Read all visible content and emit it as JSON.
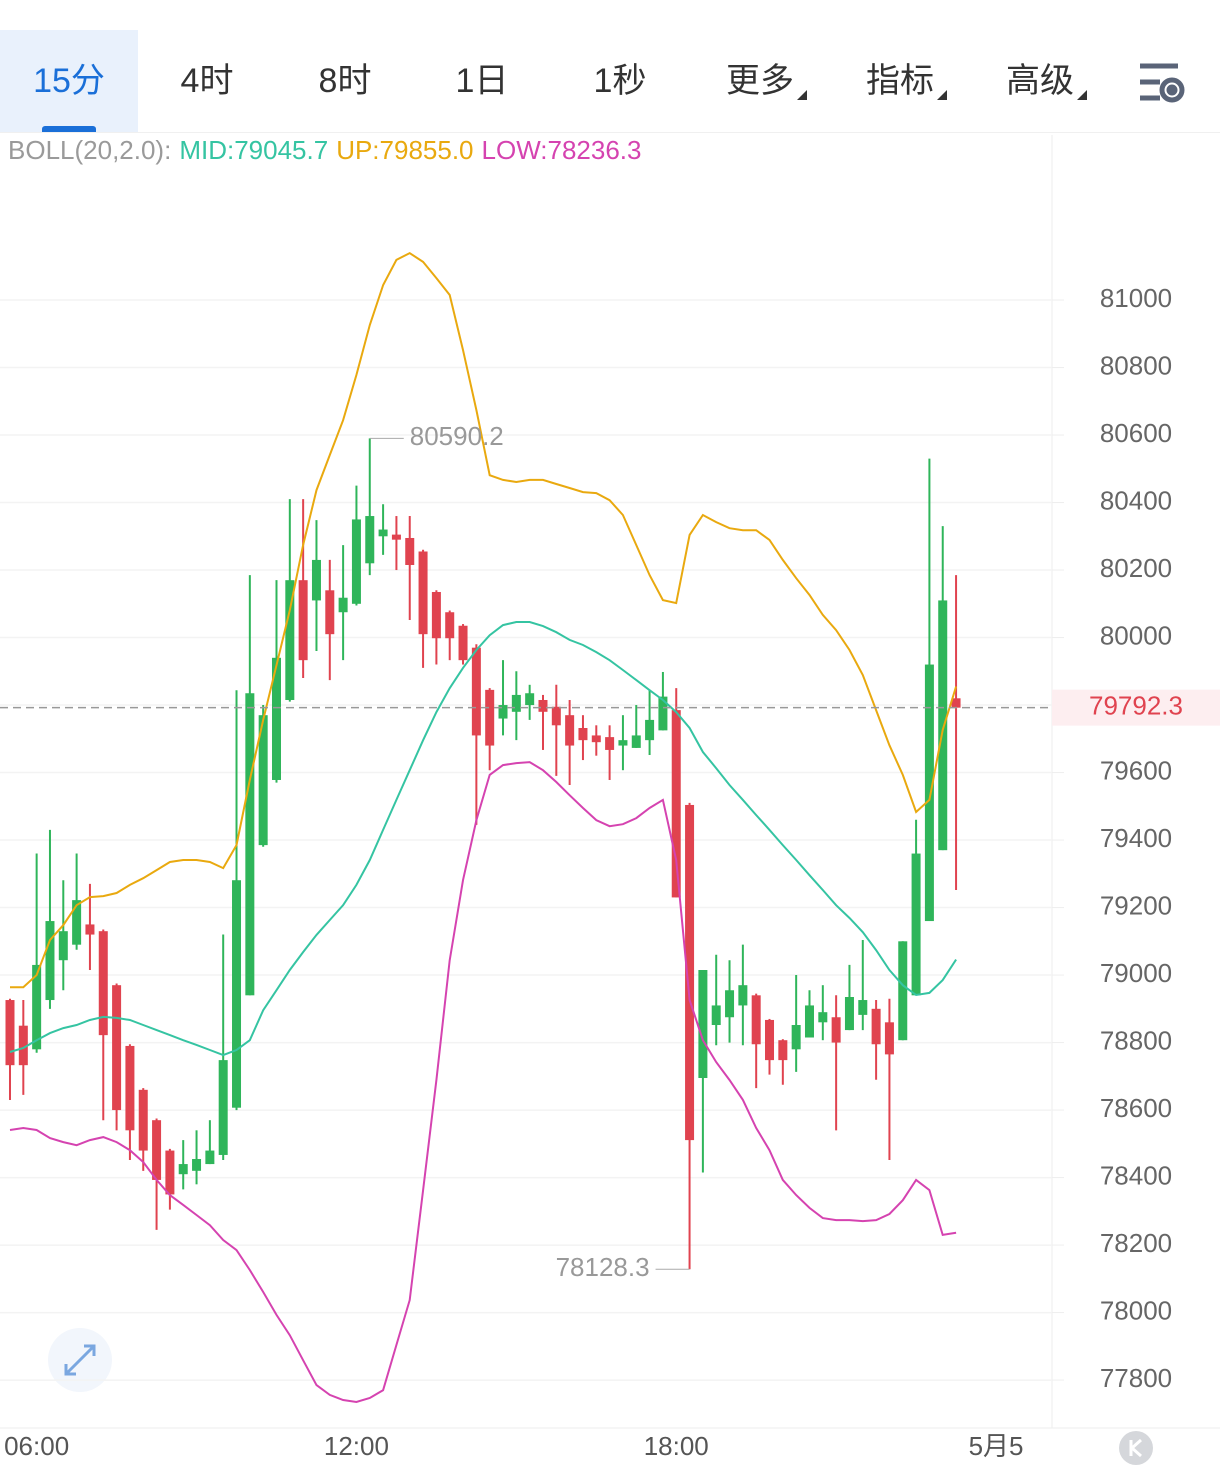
{
  "tabs": [
    {
      "label": "15分",
      "active": true,
      "dropdown": false
    },
    {
      "label": "4时",
      "active": false,
      "dropdown": false
    },
    {
      "label": "8时",
      "active": false,
      "dropdown": false
    },
    {
      "label": "1日",
      "active": false,
      "dropdown": false
    },
    {
      "label": "1秒",
      "active": false,
      "dropdown": false
    },
    {
      "label": "更多",
      "active": false,
      "dropdown": true
    },
    {
      "label": "指标",
      "active": false,
      "dropdown": true
    },
    {
      "label": "高级",
      "active": false,
      "dropdown": true
    }
  ],
  "chart_data": {
    "type": "candlestick",
    "indicator": "BOLL(20,2.0):",
    "up_color": "#2fb55a",
    "down_color": "#e0434f",
    "open": [
      78926,
      78850,
      78780,
      78926,
      79044,
      79090,
      79150,
      79130,
      78970,
      78790,
      78660,
      78570,
      78480,
      78410,
      78420,
      78440,
      78467,
      78607,
      78940,
      79385,
      79578,
      79815,
      80170,
      80110,
      80140,
      80075,
      80100,
      80220,
      80300,
      80305,
      80295,
      80255,
      80135,
      80075,
      80035,
      79970,
      79845,
      79760,
      79780,
      79800,
      79815,
      79795,
      79770,
      79732,
      79710,
      79705,
      79680,
      79673,
      79696,
      79725,
      79785,
      79504,
      78695,
      78852,
      78875,
      78910,
      78940,
      78867,
      78807,
      78780,
      78815,
      78860,
      78875,
      78837,
      78882,
      78900,
      78860,
      78807,
      78940,
      79160,
      79370,
      79820
    ],
    "high": [
      78930,
      78926,
      79360,
      79430,
      79281,
      79360,
      79270,
      79135,
      78975,
      78795,
      78665,
      78575,
      78485,
      78511,
      78540,
      78570,
      79120,
      79844,
      80185,
      79800,
      80170,
      80410,
      80410,
      80348,
      80230,
      80274,
      80450,
      80590.2,
      80395,
      80360,
      80360,
      80260,
      80140,
      80080,
      80040,
      79980,
      79850,
      79933,
      79900,
      79860,
      79830,
      79860,
      79815,
      79770,
      79740,
      79740,
      79770,
      79800,
      79845,
      79898,
      79850,
      79510,
      79015,
      79060,
      79044,
      79090,
      78945,
      78870,
      78810,
      79000,
      78955,
      78970,
      78940,
      79030,
      79104,
      78926,
      78930,
      79100,
      79460,
      80530,
      80330,
      80185
    ],
    "low": [
      78630,
      78645,
      78770,
      78900,
      78955,
      79075,
      79015,
      78570,
      78540,
      78452,
      78420,
      78245,
      78305,
      78365,
      78380,
      78440,
      78452,
      78600,
      78940,
      79380,
      79570,
      79810,
      79880,
      79960,
      79874,
      79933,
      80095,
      80185,
      80245,
      80200,
      80052,
      79910,
      79920,
      79933,
      79920,
      79445,
      79607,
      79710,
      79696,
      79756,
      79667,
      79590,
      79563,
      79637,
      79650,
      79578,
      79607,
      79673,
      79652,
      79725,
      79230,
      78128.3,
      78415,
      78792,
      78800,
      78792,
      78665,
      78705,
      78675,
      78713,
      78815,
      78807,
      78540,
      78837,
      78837,
      78690,
      78452,
      78807,
      78940,
      79160,
      79370,
      79252
    ],
    "close": [
      78733,
      78733,
      79030,
      79160,
      79130,
      79222,
      79120,
      78822,
      78600,
      78540,
      78480,
      78393,
      78350,
      78440,
      78455,
      78480,
      78748,
      79281,
      79835,
      79770,
      79940,
      80170,
      79933,
      80230,
      80010,
      80118,
      80350,
      80360,
      80320,
      80290,
      80215,
      80010,
      79998,
      79998,
      79933,
      79710,
      79680,
      79800,
      79830,
      79835,
      79780,
      79740,
      79680,
      79696,
      79690,
      79667,
      79696,
      79710,
      79756,
      79825,
      79230,
      78511,
      79015,
      78910,
      78955,
      78970,
      78795,
      78748,
      78748,
      78852,
      78910,
      78890,
      78800,
      78935,
      78926,
      78795,
      78765,
      79100,
      79360,
      79920,
      80110,
      79792.3
    ],
    "series": [
      {
        "name": "MID:79045.7",
        "color": "#35c4a2",
        "values": [
          78772,
          78784,
          78807,
          78828,
          78843,
          78852,
          78867,
          78876,
          78873,
          78867,
          78852,
          78837,
          78822,
          78807,
          78793,
          78778,
          78763,
          78778,
          78807,
          78896,
          78955,
          79015,
          79068,
          79119,
          79163,
          79207,
          79267,
          79341,
          79430,
          79519,
          79607,
          79696,
          79779,
          79850,
          79910,
          79963,
          80007,
          80037,
          80046,
          80046,
          80034,
          80016,
          79993,
          79978,
          79957,
          79933,
          79904,
          79874,
          79844,
          79815,
          79779,
          79732,
          79661,
          79613,
          79563,
          79519,
          79474,
          79430,
          79385,
          79341,
          79296,
          79252,
          79207,
          79169,
          79127,
          79074,
          79015,
          78970,
          78941,
          78947,
          78985,
          79045.7
        ]
      },
      {
        "name": "UP:79855.0",
        "color": "#e9a90f",
        "values": [
          78964,
          78964,
          79000,
          79104,
          79148,
          79207,
          79231,
          79234,
          79243,
          79267,
          79287,
          79311,
          79335,
          79341,
          79341,
          79335,
          79317,
          79385,
          79578,
          79756,
          79918,
          80081,
          80274,
          80437,
          80541,
          80644,
          80778,
          80926,
          81044,
          81119,
          81139,
          81113,
          81065,
          81015,
          80852,
          80674,
          80481,
          80467,
          80461,
          80467,
          80467,
          80455,
          80443,
          80431,
          80428,
          80407,
          80363,
          80274,
          80185,
          80111,
          80102,
          80304,
          80363,
          80342,
          80324,
          80318,
          80318,
          80289,
          80230,
          80176,
          80126,
          80067,
          80022,
          79963,
          79889,
          79785,
          79681,
          79593,
          79483,
          79519,
          79726,
          79855.0
        ]
      },
      {
        "name": "LOW:78236.3",
        "color": "#d543b0",
        "values": [
          78541,
          78547,
          78541,
          78517,
          78505,
          78496,
          78511,
          78520,
          78505,
          78481,
          78446,
          78393,
          78348,
          78319,
          78289,
          78259,
          78215,
          78185,
          78126,
          78061,
          77993,
          77933,
          77859,
          77785,
          77756,
          77741,
          77735,
          77747,
          77770,
          77904,
          78037,
          78363,
          78689,
          79044,
          79281,
          79459,
          79593,
          79622,
          79628,
          79631,
          79607,
          79572,
          79533,
          79495,
          79459,
          79441,
          79447,
          79465,
          79495,
          79519,
          79341,
          78926,
          78807,
          78742,
          78689,
          78630,
          78547,
          78481,
          78393,
          78348,
          78310,
          78280,
          78274,
          78274,
          78271,
          78274,
          78292,
          78333,
          78393,
          78363,
          78230,
          78236.3
        ]
      }
    ],
    "last_price": 79792.3,
    "xlim": [
      -0.75,
      78.2
    ],
    "xticks": [
      {
        "value": 2,
        "label": "06:00"
      },
      {
        "value": 26,
        "label": "12:00"
      },
      {
        "value": 50,
        "label": "18:00"
      },
      {
        "value": 74,
        "label": "5月5"
      }
    ],
    "ylim": [
      77658,
      81489
    ],
    "yticks": [
      77800,
      78000,
      78200,
      78400,
      78600,
      78800,
      79000,
      79200,
      79400,
      79600,
      79800,
      80000,
      80200,
      80400,
      80600,
      80800,
      81000
    ],
    "grid": true
  }
}
